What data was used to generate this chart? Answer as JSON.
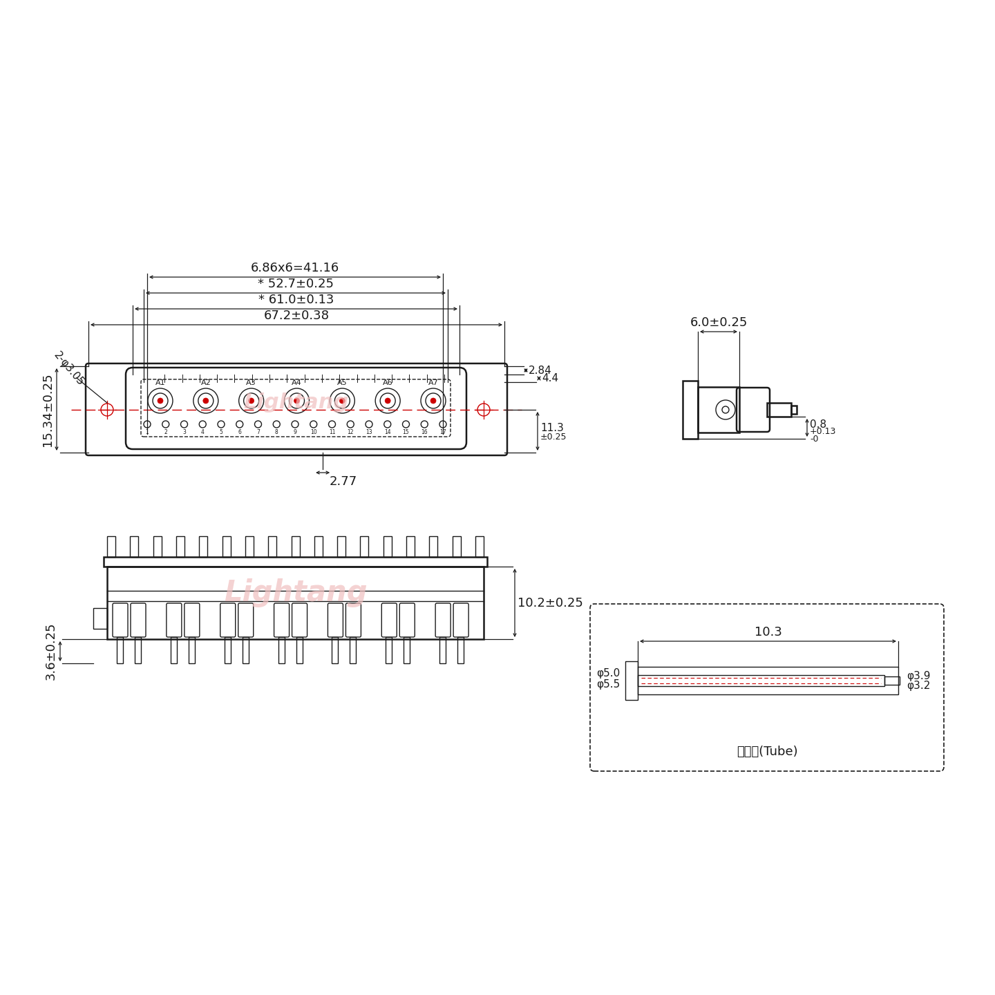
{
  "bg_color": "#ffffff",
  "line_color": "#1a1a1a",
  "red_color": "#cc0000",
  "watermark_color": "#f0c0c0",
  "watermark_text": "Lightang",
  "fig_width": 14.4,
  "fig_height": 14.4,
  "labels": {
    "dim_67": "67.2±0.38",
    "dim_61": "* 61.0±0.13",
    "dim_52": "* 52.7±0.25",
    "dim_41": "6.86x6=41.16",
    "dim_15": "15.34±0.25",
    "dim_2phi": "2-φ3.05",
    "dim_284": "2.84",
    "dim_44": "4.4",
    "dim_113": "11.3",
    "dim_025": "±0.25",
    "dim_277": "2.77",
    "dim_6": "6.0±0.25",
    "dim_08": "0.8",
    "dim_08tol": "+0.13\n-0",
    "dim_102": "10.2±0.25",
    "dim_36": "3.6±0.25",
    "dim_103": "10.3",
    "dim_phi39": "φ3.9",
    "dim_phi32": "φ3.2",
    "dim_phi50": "φ5.0",
    "dim_phi55": "φ5.5",
    "tube_label": "屏蔽管(Tube)"
  }
}
